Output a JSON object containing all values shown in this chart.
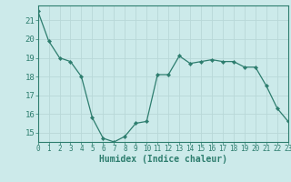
{
  "x": [
    0,
    1,
    2,
    3,
    4,
    5,
    6,
    7,
    8,
    9,
    10,
    11,
    12,
    13,
    14,
    15,
    16,
    17,
    18,
    19,
    20,
    21,
    22,
    23
  ],
  "y": [
    21.5,
    19.9,
    19.0,
    18.8,
    18.0,
    15.8,
    14.7,
    14.5,
    14.8,
    15.5,
    15.6,
    18.1,
    18.1,
    19.1,
    18.7,
    18.8,
    18.9,
    18.8,
    18.8,
    18.5,
    18.5,
    17.5,
    16.3,
    15.6
  ],
  "line_color": "#2d7d6e",
  "marker": "D",
  "marker_size": 2.2,
  "bg_color": "#cceaea",
  "grid_color": "#b8d8d8",
  "xlabel": "Humidex (Indice chaleur)",
  "ylim": [
    14.5,
    21.8
  ],
  "xlim": [
    0,
    23
  ],
  "yticks": [
    15,
    16,
    17,
    18,
    19,
    20,
    21
  ],
  "xticks": [
    0,
    1,
    2,
    3,
    4,
    5,
    6,
    7,
    8,
    9,
    10,
    11,
    12,
    13,
    14,
    15,
    16,
    17,
    18,
    19,
    20,
    21,
    22,
    23
  ],
  "tick_color": "#2d7d6e",
  "label_color": "#2d7d6e",
  "spine_color": "#2d7d6e",
  "xlabel_fontsize": 7.0,
  "ytick_fontsize": 6.5,
  "xtick_fontsize": 5.5
}
